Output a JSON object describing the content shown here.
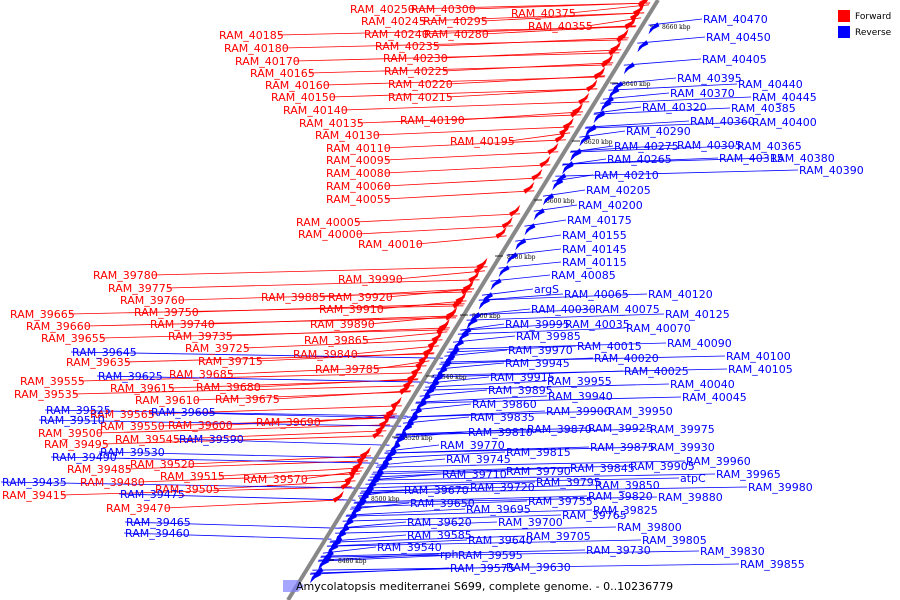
{
  "legend": {
    "forward_label": "Forward",
    "reverse_label": "Reverse",
    "forward_color": "#ff0000",
    "reverse_color": "#0000ff"
  },
  "caption": "Amycolatopsis mediterranei S699, complete genome. - 0..10236779",
  "axis_ticks": [
    "8480 kbp",
    "8500 kbp",
    "8520 kbp",
    "8540 kbp",
    "8560 kbp",
    "8580 kbp",
    "8600 kbp",
    "8620 kbp",
    "8640 kbp",
    "8660 kbp"
  ],
  "forward_labels": [
    "RAM_40250",
    "RAM_40300",
    "RAM_40375",
    "RAM_40245",
    "RAM_40295",
    "RAM_40355",
    "RAM_40185",
    "RAM_40240",
    "RAM_40280",
    "RAM_40180",
    "RAM_40235",
    "RAM_40170",
    "RAM_40230",
    "RAM_40165",
    "RAM_40225",
    "RAM_40160",
    "RAM_40220",
    "RAM_40150",
    "RAM_40215",
    "RAM_40140",
    "RAM_40190",
    "RAM_40135",
    "RAM_40130",
    "RAM_40195",
    "RAM_40110",
    "RAM_40095",
    "RAM_40080",
    "RAM_40060",
    "RAM_40055",
    "RAM_40005",
    "RAM_40000",
    "RAM_40010",
    "RAM_39780",
    "RAM_39990",
    "RAM_39775",
    "RAM_39760",
    "RAM_39885",
    "RAM_39920",
    "RAM_39750",
    "RAM_39910",
    "RAM_39665",
    "RAM_39740",
    "RAM_39890",
    "RAM_39660",
    "RAM_39735",
    "RAM_39655",
    "RAM_39725",
    "RAM_39865",
    "RAM_39840",
    "RAM_39715",
    "RAM_39635",
    "RAM_39785",
    "RAM_39685",
    "RAM_39615",
    "RAM_39680",
    "RAM_39555",
    "RAM_39535",
    "RAM_39610",
    "RAM_39675",
    "RAM_39565",
    "RAM_39550",
    "RAM_39600",
    "RAM_39690",
    "RAM_39500",
    "RAM_39545",
    "RAM_39495",
    "RAM_39520",
    "RAM_39485",
    "RAM_39515",
    "RAM_39570",
    "RAM_39480",
    "RAM_39505",
    "RAM_39415",
    "RAM_39470"
  ],
  "reverse_labels": [
    "RAM_40470",
    "RAM_40450",
    "RAM_40405",
    "RAM_40395",
    "RAM_40440",
    "RAM_40370",
    "RAM_40445",
    "RAM_40320",
    "RAM_40385",
    "RAM_40360",
    "RAM_40400",
    "RAM_40290",
    "RAM_40275",
    "RAM_40305",
    "RAM_40365",
    "RAM_40265",
    "RAM_40315",
    "RAM_40380",
    "RAM_40390",
    "RAM_40210",
    "RAM_40205",
    "RAM_40200",
    "RAM_40175",
    "RAM_40155",
    "RAM_40145",
    "RAM_40115",
    "RAM_40085",
    "argS",
    "RAM_40065",
    "RAM_40120",
    "RAM_40030",
    "RAM_40075",
    "RAM_40125",
    "RAM_39995",
    "RAM_40035",
    "RAM_40070",
    "RAM_39985",
    "RAM_40015",
    "RAM_40090",
    "RAM_39970",
    "RAM_40100",
    "RAM_39945",
    "RAM_40020",
    "RAM_40105",
    "RAM_40025",
    "RAM_39915",
    "RAM_39955",
    "RAM_40040",
    "RAM_39895",
    "RAM_39940",
    "RAM_40045",
    "RAM_39860",
    "RAM_39900",
    "RAM_39950",
    "RAM_39835",
    "RAM_39645",
    "RAM_39870",
    "RAM_39925",
    "RAM_39975",
    "RAM_39625",
    "RAM_39810",
    "RAM_39605",
    "RAM_39875",
    "RAM_39930",
    "RAM_39590",
    "RAM_39770",
    "RAM_39815",
    "RAM_39960",
    "RAM_39745",
    "RAM_39845",
    "RAM_39905",
    "RAM_39965",
    "atpC",
    "RAM_39530",
    "RAM_39710",
    "RAM_39790",
    "RAM_39980",
    "RAM_39490",
    "RAM_39795",
    "RAM_39850",
    "RAM_39720",
    "RAM_39820",
    "RAM_39880",
    "RAM_39670",
    "RAM_39755",
    "RAM_39825",
    "RAM_39650",
    "RAM_39695",
    "RAM_39765",
    "RAM_39700",
    "RAM_39800",
    "RAM_39620",
    "RAM_39705",
    "RAM_39805",
    "RAM_39640",
    "RAM_39730",
    "RAM_39830",
    "RAM_39585",
    "RAM_39540",
    "RAM_39595",
    "RAM_39630",
    "RAM_39855",
    "rph",
    "RAM_39575",
    "RAM_39435",
    "RAM_39525",
    "RAM_39510",
    "RAM_39475",
    "RAM_39465",
    "RAM_39460"
  ]
}
